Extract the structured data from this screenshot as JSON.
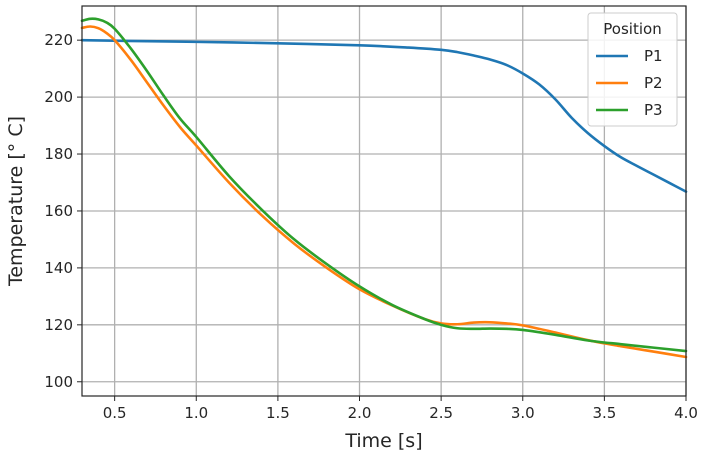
{
  "chart_data": {
    "type": "line",
    "xlabel": "Time [s]",
    "ylabel": "Temperature [° C]",
    "xlim": [
      0.3,
      4.0
    ],
    "ylim": [
      95,
      232
    ],
    "xticks": [
      0.5,
      1.0,
      1.5,
      2.0,
      2.5,
      3.0,
      3.5,
      4.0
    ],
    "yticks": [
      100,
      120,
      140,
      160,
      180,
      200,
      220
    ],
    "grid": true,
    "legend": {
      "title": "Position",
      "placement": "top-right"
    },
    "series": [
      {
        "name": "P1",
        "color": "#1f77b4",
        "x": [
          0.3,
          0.5,
          1.0,
          1.5,
          2.0,
          2.3,
          2.5,
          2.6,
          2.7,
          2.8,
          2.9,
          3.0,
          3.1,
          3.2,
          3.3,
          3.4,
          3.5,
          3.6,
          3.7,
          3.8,
          3.9,
          4.0
        ],
        "y": [
          220,
          219.8,
          219.4,
          218.9,
          218.2,
          217.4,
          216.6,
          215.8,
          214.6,
          213.2,
          211.3,
          208.3,
          204.5,
          199.2,
          192.7,
          187.3,
          182.8,
          178.9,
          175.8,
          172.8,
          169.8,
          166.8
        ]
      },
      {
        "name": "P2",
        "color": "#ff7f0e",
        "x": [
          0.3,
          0.35,
          0.4,
          0.45,
          0.5,
          0.6,
          0.7,
          0.8,
          0.9,
          1.0,
          1.2,
          1.4,
          1.6,
          1.8,
          2.0,
          2.2,
          2.4,
          2.5,
          2.6,
          2.7,
          2.8,
          2.9,
          3.0,
          3.2,
          3.4,
          3.6,
          3.8,
          4.0
        ],
        "y": [
          224.3,
          224.8,
          224.2,
          222.5,
          220.0,
          213.0,
          205.0,
          197.0,
          189.5,
          183.0,
          170.0,
          158.5,
          148.5,
          140.0,
          132.5,
          126.8,
          122.0,
          120.5,
          120.2,
          120.8,
          120.9,
          120.5,
          119.8,
          117.3,
          114.6,
          112.5,
          110.6,
          108.7
        ]
      },
      {
        "name": "P3",
        "color": "#2ca02c",
        "x": [
          0.3,
          0.35,
          0.4,
          0.45,
          0.5,
          0.6,
          0.7,
          0.8,
          0.9,
          1.0,
          1.2,
          1.4,
          1.6,
          1.8,
          2.0,
          2.2,
          2.4,
          2.5,
          2.6,
          2.7,
          2.8,
          2.9,
          3.0,
          3.2,
          3.4,
          3.6,
          3.8,
          4.0
        ],
        "y": [
          226.8,
          227.5,
          227.3,
          226.2,
          224.0,
          217.0,
          209.0,
          200.5,
          192.5,
          186.0,
          172.3,
          160.5,
          150.0,
          141.3,
          133.5,
          127.0,
          122.0,
          120.0,
          118.8,
          118.6,
          118.7,
          118.6,
          118.2,
          116.5,
          114.5,
          113.2,
          112.0,
          110.8
        ]
      }
    ]
  }
}
